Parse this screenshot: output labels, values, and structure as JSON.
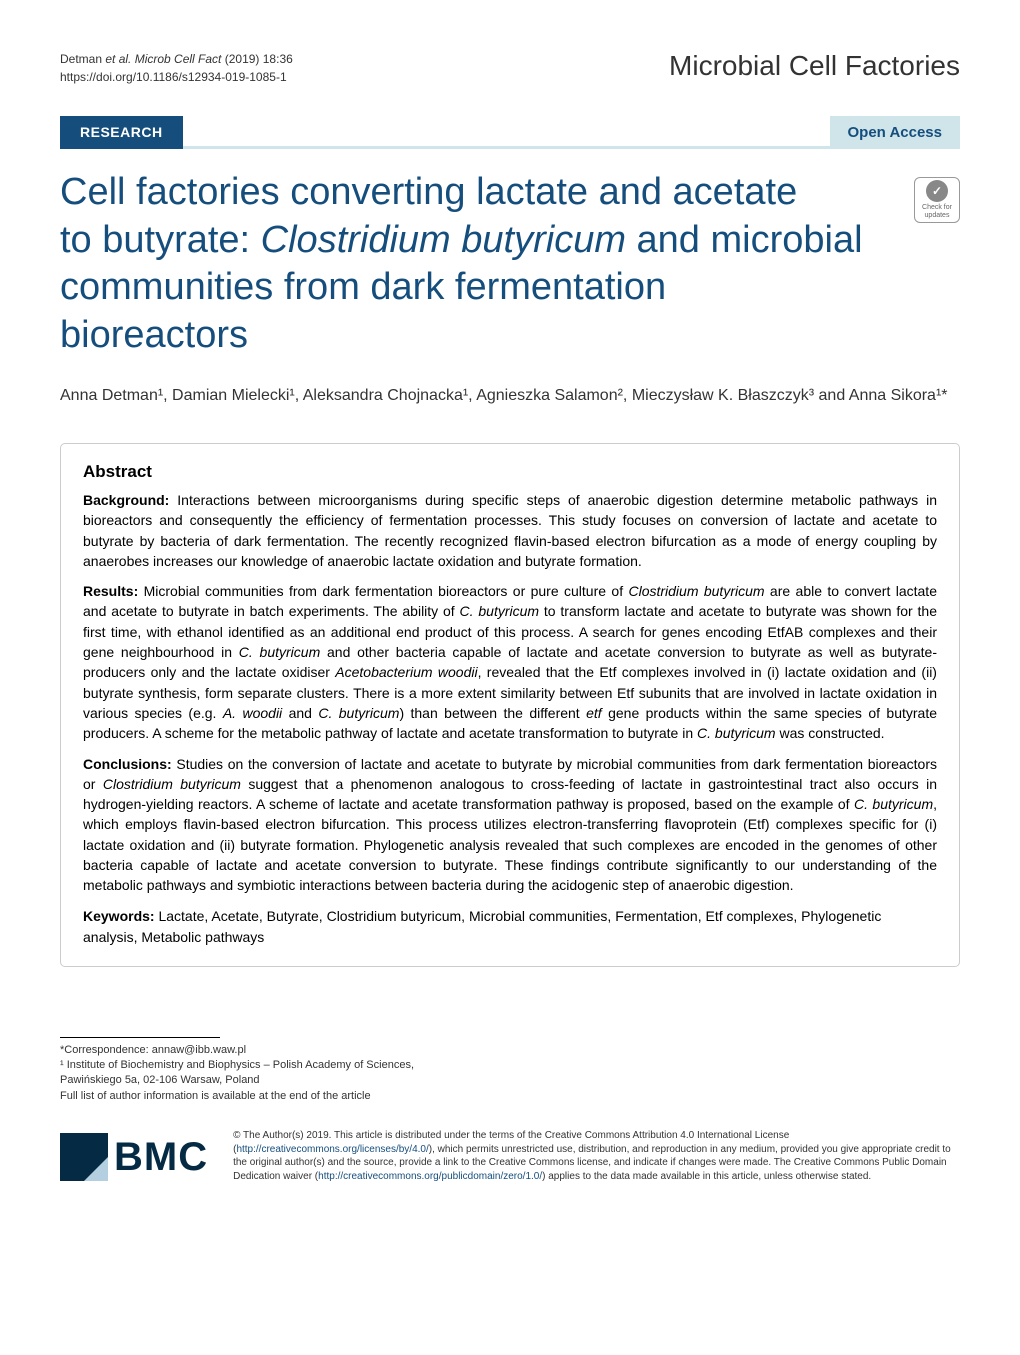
{
  "header": {
    "citation_line1": "Detman et al. Microb Cell Fact    (2019) 18:36",
    "citation_italic": "et al. Microb Cell Fact",
    "doi": "https://doi.org/10.1186/s12934-019-1085-1",
    "journal": "Microbial Cell Factories"
  },
  "banner": {
    "research": "RESEARCH",
    "open_access": "Open Access"
  },
  "title": {
    "line1": "Cell factories converting lactate and acetate",
    "line2_pre": "to butyrate: ",
    "line2_italic": "Clostridium butyricum",
    "line2_post": " and microbial",
    "line3": "communities from dark fermentation",
    "line4": "bioreactors"
  },
  "crossmark": {
    "label": "Check for updates"
  },
  "authors": "Anna Detman¹, Damian Mielecki¹, Aleksandra Chojnacka¹, Agnieszka Salamon², Mieczysław K. Błaszczyk³ and Anna Sikora¹*",
  "abstract": {
    "heading": "Abstract",
    "background_label": "Background:",
    "background_text": " Interactions between microorganisms during specific steps of anaerobic digestion determine metabolic pathways in bioreactors and consequently the efficiency of fermentation processes. This study focuses on conversion of lactate and acetate to butyrate by bacteria of dark fermentation. The recently recognized flavin-based electron bifurcation as a mode of energy coupling by anaerobes increases our knowledge of anaerobic lactate oxidation and butyrate formation.",
    "results_label": "Results:",
    "results_text": " Microbial communities from dark fermentation bioreactors or pure culture of Clostridium butyricum are able to convert lactate and acetate to butyrate in batch experiments. The ability of C. butyricum to transform lactate and acetate to butyrate was shown for the first time, with ethanol identified as an additional end product of this process. A search for genes encoding EtfAB complexes and their gene neighbourhood in C. butyricum and other bacteria capable of lactate and acetate conversion to butyrate as well as butyrate-producers only and the lactate oxidiser Acetobacterium woodii, revealed that the Etf complexes involved in (i) lactate oxidation and (ii) butyrate synthesis, form separate clusters. There is a more extent similarity between Etf subunits that are involved in lactate oxidation in various species (e.g. A. woodii and C. butyricum) than between the different etf gene products within the same species of butyrate producers. A scheme for the metabolic pathway of lactate and acetate transformation to butyrate in C. butyricum was constructed.",
    "conclusions_label": "Conclusions:",
    "conclusions_text": " Studies on the conversion of lactate and acetate to butyrate by microbial communities from dark fermentation bioreactors or Clostridium butyricum suggest that a phenomenon analogous to cross-feeding of lactate in gastrointestinal tract also occurs in hydrogen-yielding reactors. A scheme of lactate and acetate transformation pathway is proposed, based on the example of C. butyricum, which employs flavin-based electron bifurcation. This process utilizes electron-transferring flavoprotein (Etf) complexes specific for (i) lactate oxidation and (ii) butyrate formation. Phylogenetic analysis revealed that such complexes are encoded in the genomes of other bacteria capable of lactate and acetate conversion to butyrate. These findings contribute significantly to our understanding of the metabolic pathways and symbiotic interactions between bacteria during the acidogenic step of anaerobic digestion.",
    "keywords_label": "Keywords:",
    "keywords_text": " Lactate, Acetate, Butyrate, Clostridium butyricum, Microbial communities, Fermentation, Etf complexes, Phylogenetic analysis, Metabolic pathways"
  },
  "footer": {
    "correspondence": "*Correspondence:  annaw@ibb.waw.pl",
    "affiliation1": "¹ Institute of Biochemistry and Biophysics – Polish Academy of Sciences,",
    "affiliation2": "Pawińskiego 5a, 02-106 Warsaw, Poland",
    "affiliation_note": "Full list of author information is available at the end of the article"
  },
  "bmc": {
    "text": "BMC"
  },
  "license": {
    "text": "© The Author(s) 2019. This article is distributed under the terms of the Creative Commons Attribution 4.0 International License (http://creativecommons.org/licenses/by/4.0/), which permits unrestricted use, distribution, and reproduction in any medium, provided you give appropriate credit to the original author(s) and the source, provide a link to the Creative Commons license, and indicate if changes were made. The Creative Commons Public Domain Dedication waiver (http://creativecommons.org/publicdomain/zero/1.0/) applies to the data made available in this article, unless otherwise stated."
  },
  "colors": {
    "brand_blue": "#154e7d",
    "light_blue": "#cfe5ea",
    "bmc_dark": "#052a44",
    "text": "#000000",
    "bg": "#ffffff"
  },
  "typography": {
    "title_size_pt": 38,
    "body_size_pt": 14,
    "header_size_pt": 12,
    "journal_size_pt": 28
  }
}
